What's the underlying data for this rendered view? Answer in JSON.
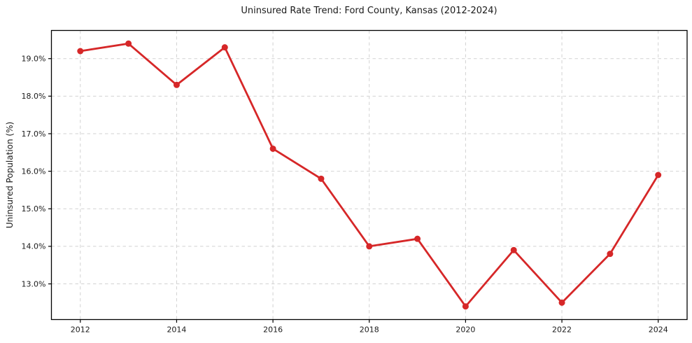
{
  "chart_data": {
    "type": "line",
    "title": "Uninsured Rate Trend: Ford County, Kansas (2012-2024)",
    "xlabel": "",
    "ylabel": "Uninsured Population (%)",
    "x": [
      2012,
      2013,
      2014,
      2015,
      2016,
      2017,
      2018,
      2019,
      2020,
      2021,
      2022,
      2023,
      2024
    ],
    "values": [
      19.2,
      19.4,
      18.3,
      19.3,
      16.6,
      15.8,
      14.0,
      14.2,
      12.4,
      13.9,
      12.5,
      13.8,
      15.9
    ],
    "xticks": [
      2012,
      2014,
      2016,
      2018,
      2020,
      2022,
      2024
    ],
    "xtick_labels": [
      "2012",
      "2014",
      "2016",
      "2018",
      "2020",
      "2022",
      "2024"
    ],
    "yticks": [
      13,
      14,
      15,
      16,
      17,
      18,
      19
    ],
    "ytick_labels": [
      "13.0%",
      "14.0%",
      "15.0%",
      "16.0%",
      "17.0%",
      "18.0%",
      "19.0%"
    ],
    "xlim": [
      2011.4,
      2024.6
    ],
    "ylim": [
      12.05,
      19.75
    ],
    "grid": true,
    "legend": false,
    "style": {
      "line_color": "#d62728",
      "marker_color": "#d62728",
      "grid_color": "#d2d2d2",
      "spine_color": "#000000",
      "background_color": "#ffffff",
      "line_width": 2.8,
      "marker_radius": 4.5
    }
  }
}
